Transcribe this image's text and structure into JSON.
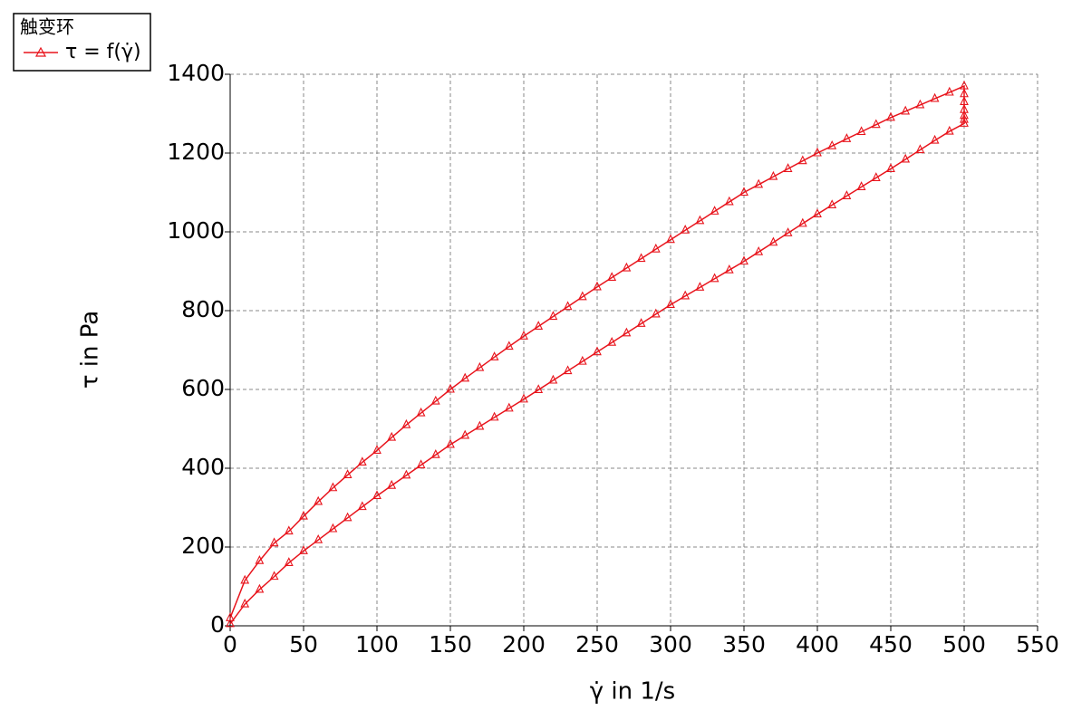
{
  "chart_data": {
    "type": "line",
    "legend_title": "触变环",
    "xlabel": "γ̇ in 1/s",
    "ylabel": "τ in Pa",
    "xlim": [
      0,
      550
    ],
    "xticks": [
      0,
      50,
      100,
      150,
      200,
      250,
      300,
      350,
      400,
      450,
      500,
      550
    ],
    "ylim": [
      0,
      1400
    ],
    "yticks": [
      0,
      200,
      400,
      600,
      800,
      1000,
      1200,
      1400
    ],
    "grid": true,
    "legend": "upper left",
    "x": [
      0,
      10,
      20,
      30,
      40,
      50,
      60,
      70,
      80,
      90,
      100,
      110,
      120,
      130,
      140,
      150,
      160,
      170,
      180,
      190,
      200,
      210,
      220,
      230,
      240,
      250,
      260,
      270,
      280,
      290,
      300,
      310,
      320,
      330,
      340,
      350,
      360,
      370,
      380,
      390,
      400,
      410,
      420,
      430,
      440,
      450,
      460,
      470,
      480,
      490,
      500,
      500,
      500,
      500,
      500,
      500,
      500,
      490,
      480,
      470,
      460,
      450,
      440,
      430,
      420,
      410,
      400,
      390,
      380,
      370,
      360,
      350,
      340,
      330,
      320,
      310,
      300,
      290,
      280,
      270,
      260,
      250,
      240,
      230,
      220,
      210,
      200,
      190,
      180,
      170,
      160,
      150,
      140,
      130,
      120,
      110,
      100,
      90,
      80,
      70,
      60,
      50,
      40,
      30,
      20,
      10,
      0
    ],
    "series": [
      {
        "name": "τ = f(γ̇)",
        "color": "#e8141c",
        "values": [
          20,
          115,
          165,
          210,
          240,
          278,
          315,
          350,
          383,
          415,
          445,
          478,
          510,
          540,
          570,
          600,
          628,
          655,
          682,
          709,
          735,
          760,
          785,
          810,
          835,
          860,
          884,
          908,
          932,
          956,
          980,
          1004,
          1028,
          1052,
          1076,
          1100,
          1120,
          1140,
          1160,
          1180,
          1200,
          1218,
          1236,
          1254,
          1272,
          1290,
          1306,
          1322,
          1338,
          1354,
          1370,
          1350,
          1330,
          1310,
          1295,
          1285,
          1275,
          1255,
          1232,
          1208,
          1184,
          1160,
          1137,
          1114,
          1091,
          1068,
          1045,
          1021,
          997,
          973,
          949,
          925,
          903,
          881,
          859,
          837,
          815,
          791,
          767,
          743,
          719,
          695,
          671,
          647,
          623,
          599,
          575,
          552,
          529,
          506,
          483,
          460,
          434,
          408,
          382,
          356,
          330,
          302,
          274,
          246,
          218,
          190,
          160,
          125,
          92,
          55,
          5
        ]
      }
    ]
  }
}
